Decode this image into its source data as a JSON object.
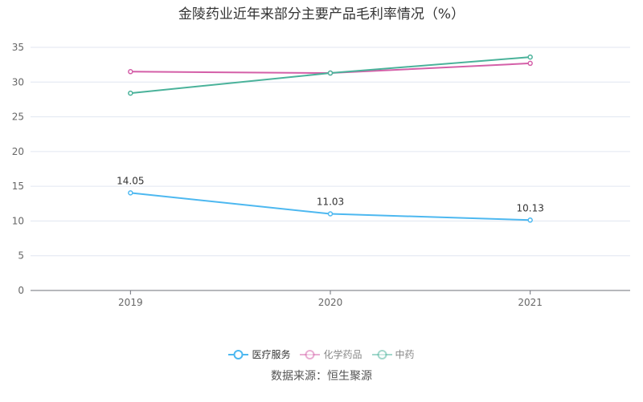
{
  "chart_data": {
    "type": "line",
    "title": "金陵药业近年来部分主要产品毛利率情况（%）",
    "categories": [
      "2019",
      "2020",
      "2021"
    ],
    "ylim": [
      0,
      35
    ],
    "yticks": [
      "0",
      "5",
      "10",
      "15",
      "20",
      "25",
      "30",
      "35"
    ],
    "grid": true,
    "legend_position": "bottom",
    "series": [
      {
        "name": "医疗服务",
        "color": "#4db8f0",
        "values": [
          14.05,
          11.03,
          10.13
        ],
        "labels": [
          "14.05",
          "11.03",
          "10.13"
        ],
        "legend_text_color": "#333333"
      },
      {
        "name": "化学药品",
        "color": "#d45fa8",
        "values": [
          31.5,
          31.3,
          32.7
        ],
        "legend_text_color": "#888888"
      },
      {
        "name": "中药",
        "color": "#4ab29a",
        "values": [
          28.4,
          31.3,
          33.6
        ],
        "legend_text_color": "#888888"
      }
    ]
  },
  "source": "数据来源：恒生聚源"
}
